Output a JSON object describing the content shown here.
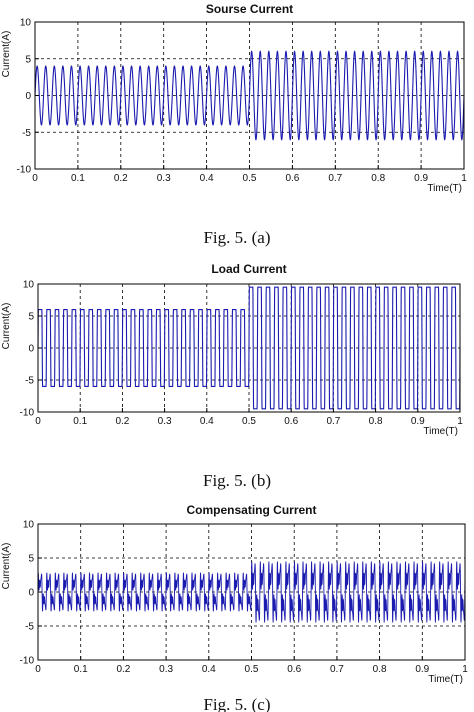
{
  "colors": {
    "trace": "#1b1bb0",
    "axis": "#000000",
    "grid": "#000000",
    "background": "#ffffff"
  },
  "chart_data": [
    {
      "type": "line",
      "title": "Sourse Current",
      "xlabel": "Time(T)",
      "ylabel": "Current(A)",
      "caption": "Fig. 5. (a)",
      "xlim": [
        0,
        1
      ],
      "ylim": [
        -10,
        10
      ],
      "xticks": [
        "0",
        "0.1",
        "0.2",
        "0.3",
        "0.4",
        "0.5",
        "0.6",
        "0.7",
        "0.8",
        "0.9",
        "1"
      ],
      "yticks": [
        "10",
        "5",
        "0",
        "-5",
        "-10"
      ],
      "grid": true,
      "signal": {
        "waveform": "sine",
        "cycles_per_unit": 50,
        "segments": [
          {
            "x_start": 0,
            "x_end": 0.5,
            "amplitude": 4
          },
          {
            "x_start": 0.5,
            "x_end": 1,
            "amplitude": 6
          }
        ]
      }
    },
    {
      "type": "line",
      "title": "Load Current",
      "xlabel": "Time(T)",
      "ylabel": "Current(A)",
      "caption": "Fig. 5. (b)",
      "xlim": [
        0,
        1
      ],
      "ylim": [
        -10,
        10
      ],
      "xticks": [
        "0",
        "0.1",
        "0.2",
        "0.3",
        "0.4",
        "0.5",
        "0.6",
        "0.7",
        "0.8",
        "0.9",
        "1"
      ],
      "yticks": [
        "10",
        "5",
        "0",
        "-5",
        "-10"
      ],
      "grid": true,
      "signal": {
        "waveform": "quasi-square",
        "cycles_per_unit": 50,
        "segments": [
          {
            "x_start": 0,
            "x_end": 0.5,
            "amplitude": 6
          },
          {
            "x_start": 0.5,
            "x_end": 1,
            "amplitude": 9.5
          }
        ]
      }
    },
    {
      "type": "line",
      "title": "Compensating Current",
      "xlabel": "Time(T)",
      "ylabel": "Current(A)",
      "caption": "Fig. 5. (c)",
      "xlim": [
        0,
        1
      ],
      "ylim": [
        -10,
        10
      ],
      "xticks": [
        "0",
        "0.1",
        "0.2",
        "0.3",
        "0.4",
        "0.5",
        "0.6",
        "0.7",
        "0.8",
        "0.9",
        "1"
      ],
      "yticks": [
        "10",
        "5",
        "0",
        "-5",
        "-10"
      ],
      "grid": true,
      "signal": {
        "waveform": "harmonic",
        "cycles_per_unit": 50,
        "segments": [
          {
            "x_start": 0,
            "x_end": 0.5,
            "amplitude": 3.5
          },
          {
            "x_start": 0.5,
            "x_end": 1,
            "amplitude": 5.5
          }
        ]
      }
    }
  ]
}
